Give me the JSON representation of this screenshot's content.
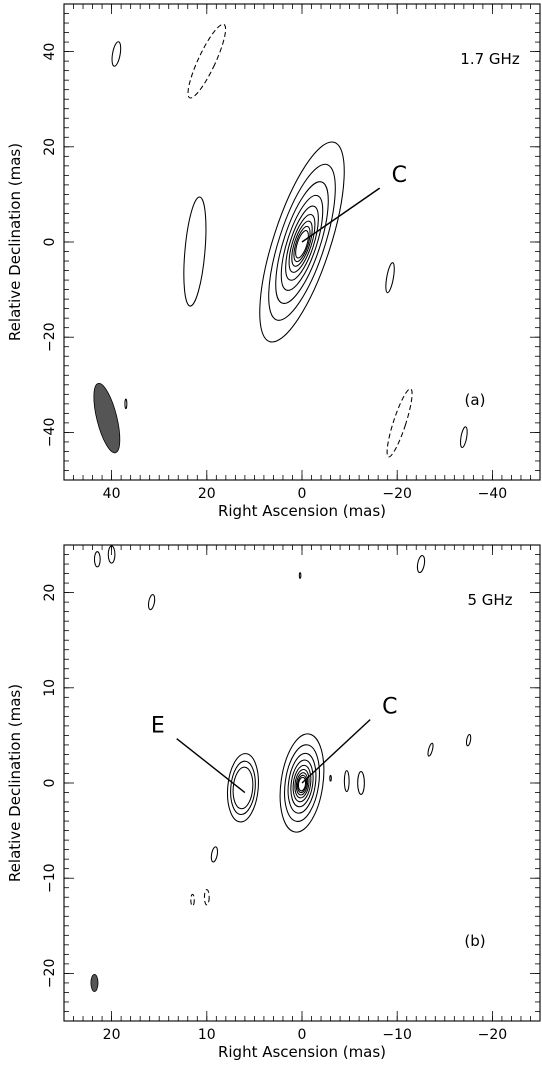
{
  "chart_data": [
    {
      "type": "contour",
      "panel_label": "(a)",
      "frequency": "1.7 GHz",
      "xlabel": "Right Ascension  (mas)",
      "ylabel": "Relative Declination  (mas)",
      "xlim": [
        50,
        -50
      ],
      "ylim": [
        -50,
        50
      ],
      "x_reversed": true,
      "x_ticks": [
        40,
        20,
        0,
        -20,
        -40
      ],
      "x_tick_labels": [
        "40",
        "20",
        "0",
        "−20",
        "−40"
      ],
      "y_ticks": [
        40,
        20,
        0,
        -20,
        -40
      ],
      "y_tick_labels": [
        "40",
        "20",
        "0",
        "−20",
        "−40"
      ],
      "components": [
        {
          "label": "C",
          "x": 0,
          "y": 0,
          "label_x": -18,
          "label_y": 13
        }
      ],
      "main_source": {
        "x": 0,
        "y": 0,
        "levels": 9,
        "max_semi_major": 22,
        "max_semi_minor": 6,
        "position_angle_deg": 18
      },
      "other_contours": [
        {
          "x": 39,
          "y": 39.5,
          "a": 2.6,
          "b": 0.8,
          "pa": 10,
          "sign": "positive"
        },
        {
          "x": 22.5,
          "y": -2,
          "a": 11.5,
          "b": 2.1,
          "pa": 5,
          "sign": "positive"
        },
        {
          "x": -18.5,
          "y": -7.5,
          "a": 3.2,
          "b": 0.7,
          "pa": 10,
          "sign": "positive"
        },
        {
          "x": -34,
          "y": -41,
          "a": 2.2,
          "b": 0.6,
          "pa": 10,
          "sign": "positive"
        },
        {
          "x": 37,
          "y": -34,
          "a": 1.0,
          "b": 0.2,
          "pa": 0,
          "sign": "positive"
        },
        {
          "x": 20,
          "y": 38,
          "a": 8.5,
          "b": 1.8,
          "pa": 25,
          "sign": "negative"
        },
        {
          "x": -20.5,
          "y": -38,
          "a": 7.5,
          "b": 1.3,
          "pa": 18,
          "sign": "negative"
        }
      ],
      "beam": {
        "x": 41,
        "y": -37,
        "major": 15,
        "minor": 4.2,
        "pa": 14
      }
    },
    {
      "type": "contour",
      "panel_label": "(b)",
      "frequency": "5 GHz",
      "xlabel": "Right Ascension  (mas)",
      "ylabel": "Relative Declination  (mas)",
      "xlim": [
        25,
        -25
      ],
      "ylim": [
        -25,
        25
      ],
      "x_reversed": true,
      "x_ticks": [
        20,
        10,
        0,
        -10,
        -20
      ],
      "x_tick_labels": [
        "20",
        "10",
        "0",
        "−10",
        "−20"
      ],
      "y_ticks": [
        20,
        10,
        0,
        -10,
        -20
      ],
      "y_tick_labels": [
        "20",
        "10",
        "0",
        "−10",
        "−20"
      ],
      "components": [
        {
          "label": "C",
          "x": 0,
          "y": 0,
          "label_x": -8,
          "label_y": 7.5
        },
        {
          "label": "E",
          "x": 6,
          "y": -1,
          "label_x": 14,
          "label_y": 5.5
        }
      ],
      "main_source": {
        "x": 0,
        "y": 0,
        "levels": 9,
        "max_semi_major": 5.2,
        "max_semi_minor": 2.2,
        "position_angle_deg": 8
      },
      "secondary_source": {
        "x": 6.2,
        "y": -0.5,
        "levels": 3,
        "max_semi_major": 3.6,
        "max_semi_minor": 1.6,
        "position_angle_deg": 5
      },
      "other_contours": [
        {
          "x": 21.5,
          "y": 23.5,
          "a": 0.8,
          "b": 0.3,
          "pa": 0,
          "sign": "positive"
        },
        {
          "x": 20,
          "y": 24,
          "a": 0.9,
          "b": 0.35,
          "pa": 0,
          "sign": "positive"
        },
        {
          "x": 15.8,
          "y": 19,
          "a": 0.8,
          "b": 0.3,
          "pa": 10,
          "sign": "positive"
        },
        {
          "x": 0.2,
          "y": 21.8,
          "a": 0.3,
          "b": 0.08,
          "pa": 0,
          "sign": "positive"
        },
        {
          "x": -12.5,
          "y": 23,
          "a": 0.9,
          "b": 0.35,
          "pa": 10,
          "sign": "positive"
        },
        {
          "x": -3,
          "y": 0.5,
          "a": 0.3,
          "b": 0.08,
          "pa": 0,
          "sign": "positive"
        },
        {
          "x": -4.7,
          "y": 0.2,
          "a": 1.1,
          "b": 0.25,
          "pa": 0,
          "sign": "positive"
        },
        {
          "x": -6.2,
          "y": 0,
          "a": 1.2,
          "b": 0.35,
          "pa": 0,
          "sign": "positive"
        },
        {
          "x": -13.5,
          "y": 3.5,
          "a": 0.7,
          "b": 0.2,
          "pa": 15,
          "sign": "positive"
        },
        {
          "x": -17.5,
          "y": 4.5,
          "a": 0.6,
          "b": 0.2,
          "pa": 10,
          "sign": "positive"
        },
        {
          "x": 9.2,
          "y": -7.5,
          "a": 0.8,
          "b": 0.3,
          "pa": 10,
          "sign": "positive"
        },
        {
          "x": 11.5,
          "y": -12.3,
          "a": 0.6,
          "b": 0.18,
          "pa": 0,
          "sign": "negative"
        },
        {
          "x": 10,
          "y": -12,
          "a": 0.8,
          "b": 0.25,
          "pa": 0,
          "sign": "negative"
        }
      ],
      "beam": {
        "x": 21.8,
        "y": -21,
        "major": 1.8,
        "minor": 0.75,
        "pa": 0
      }
    }
  ]
}
